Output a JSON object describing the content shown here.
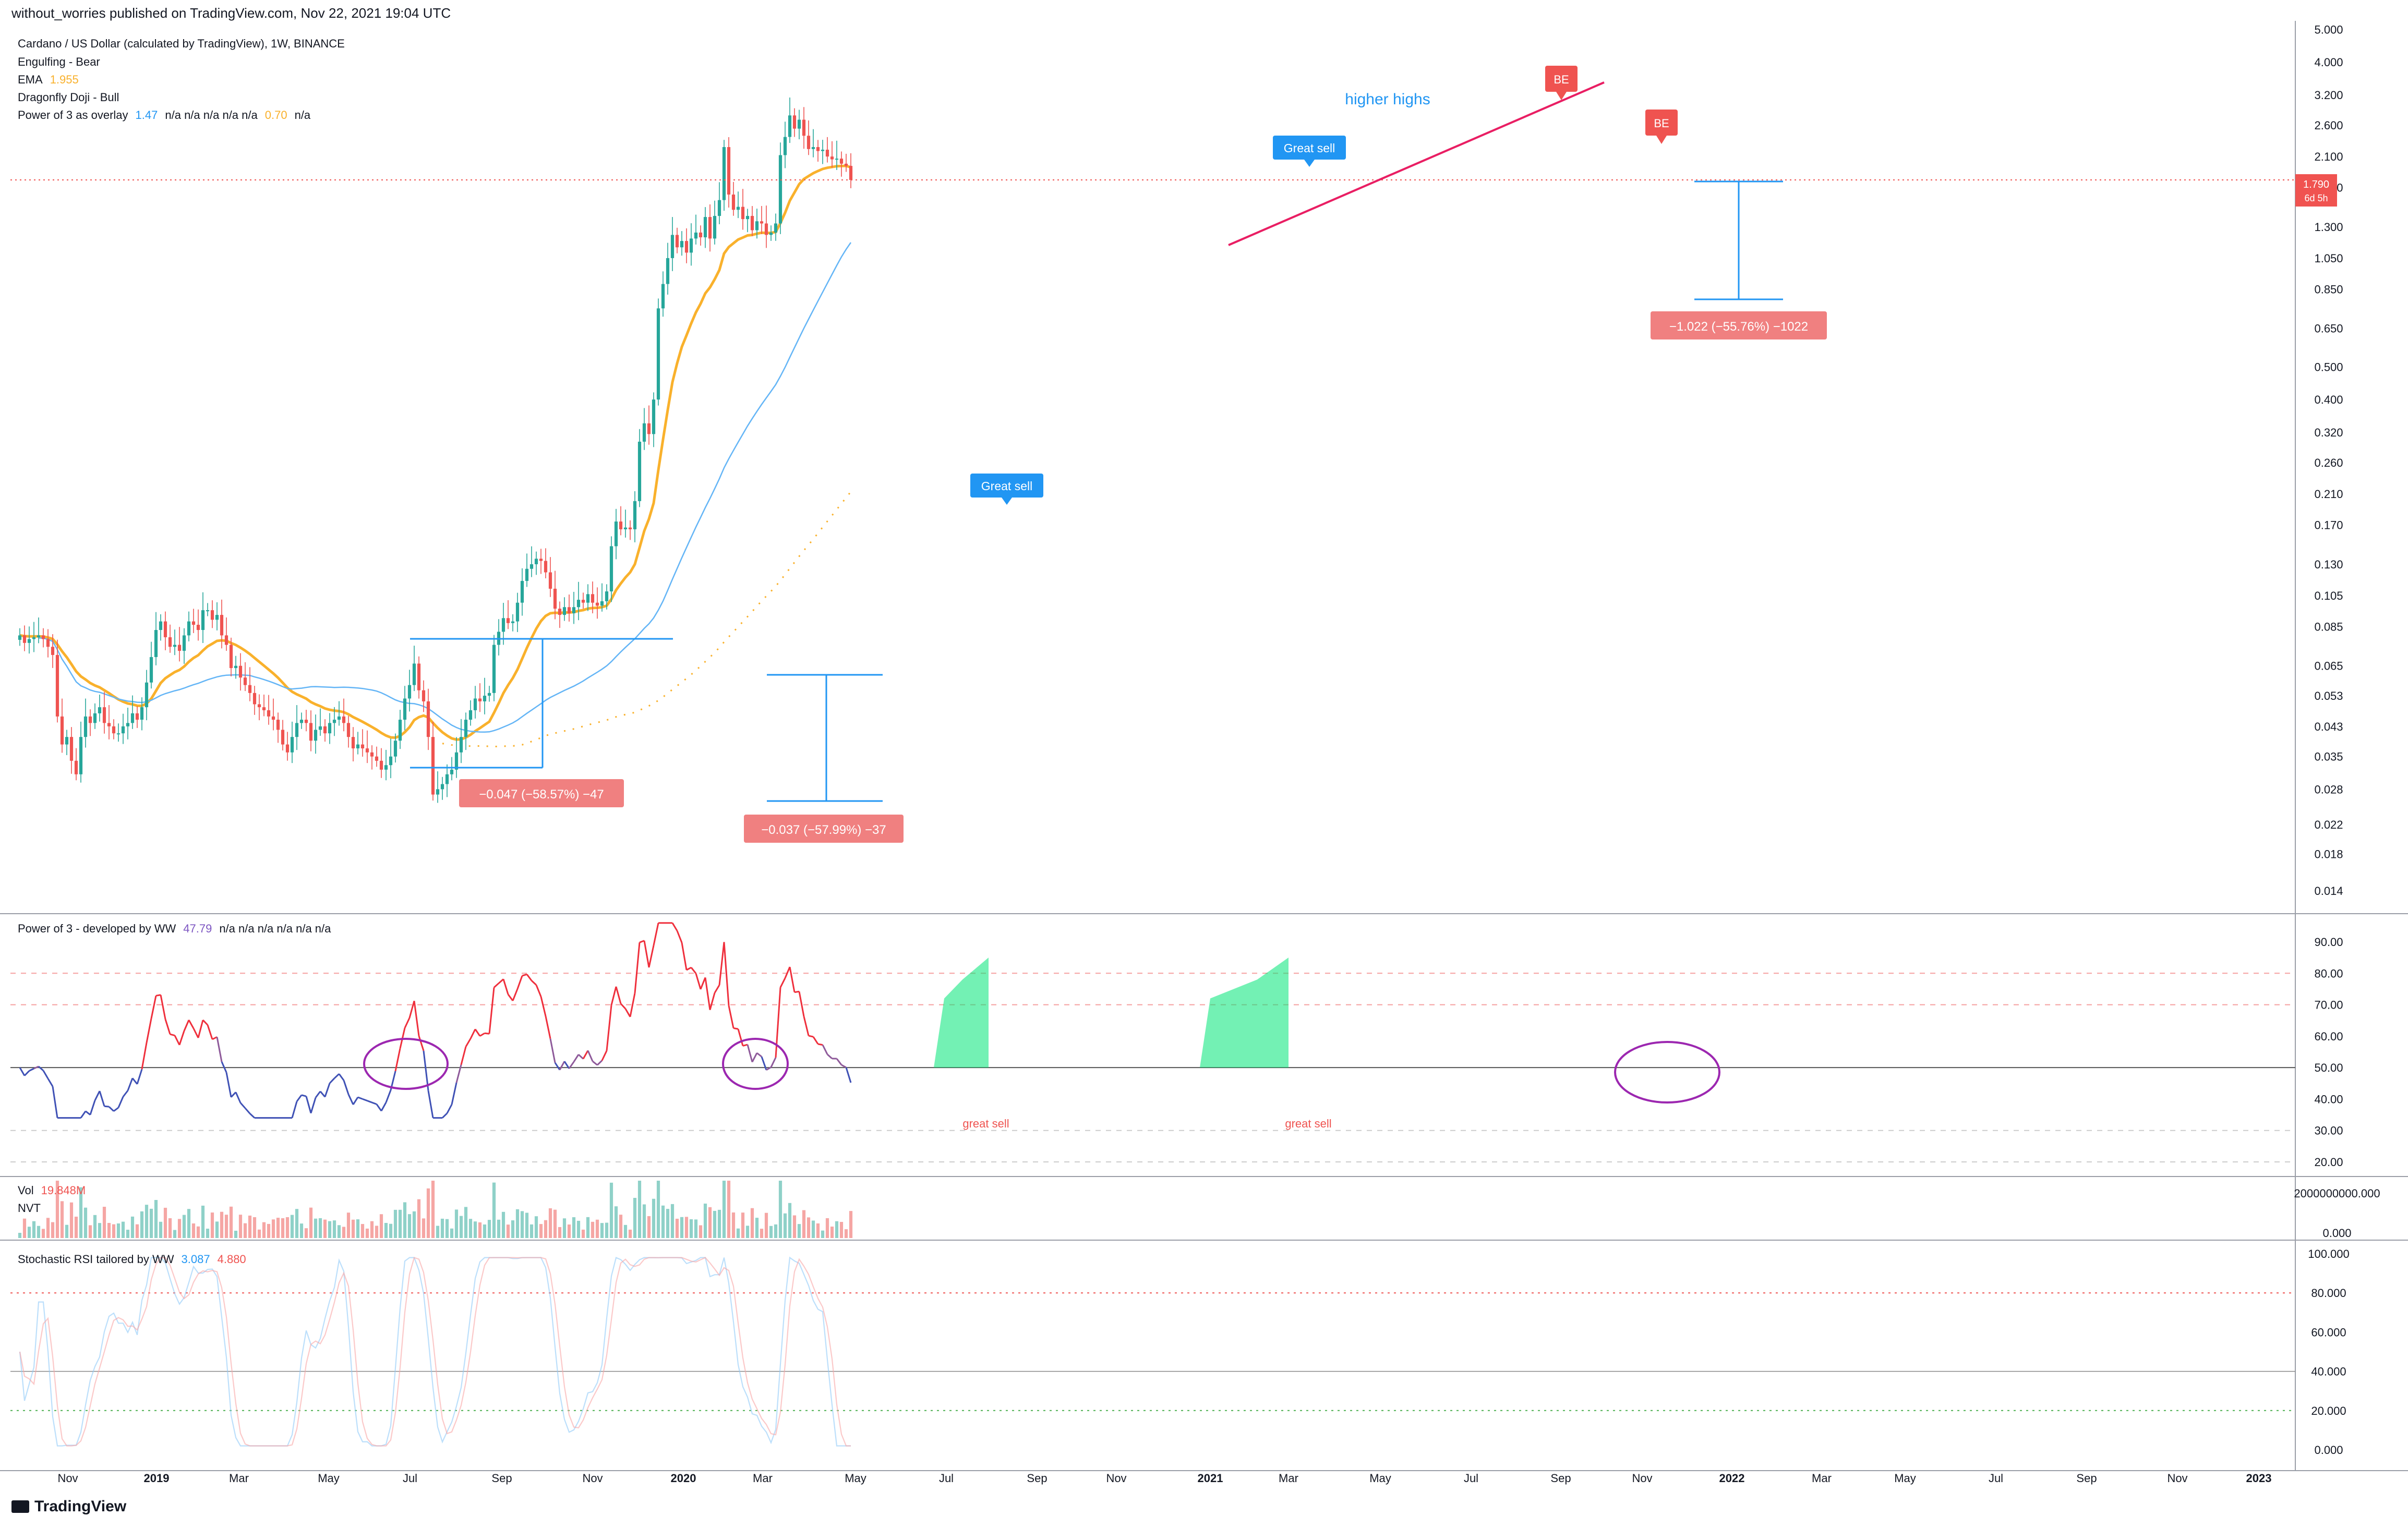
{
  "header": "without_worries published on TradingView.com, Nov 22, 2021 19:04 UTC",
  "footer": {
    "logo_text": "TradingView"
  },
  "colors": {
    "up": "#26a69a",
    "down": "#ef5350",
    "ema": "#f9b12c",
    "ma": "#64b5f6",
    "power": "#ef2f3c",
    "power_low": "#3f51b5",
    "annot": "#9c27b0",
    "label_blue": "#2196f3",
    "label_red": "#ef5350",
    "price_red": "#f05350"
  },
  "legend": {
    "line1": "Cardano / US Dollar (calculated by TradingView), 1W, BINANCE",
    "line2": "Engulfing - Bear",
    "ema_label": "EMA",
    "ema_value": "1.955",
    "line4": "Dragonfly Doji - Bull",
    "p3o_label": "Power of 3 as overlay",
    "p3o_v1": "1.47",
    "p3o_na": "n/a  n/a  n/a  n/a  n/a",
    "p3o_v2": "0.70",
    "p3o_na2": "n/a"
  },
  "annotations": {
    "higher_highs": "higher highs",
    "great_sell_1": "Great sell",
    "great_sell_2": "Great sell",
    "be1": "BE",
    "be2": "BE",
    "measure1": "−0.047 (−58.57%) −47",
    "measure2": "−0.037 (−57.99%) −37",
    "measure3": "−1.022 (−55.76%) −1022",
    "great_sell_p1": "great sell",
    "great_sell_p2": "great sell"
  },
  "price_badge": {
    "price": "1.790",
    "time": "6d 5h"
  },
  "panels": {
    "power": {
      "title": "Power of 3 - developed by WW",
      "value": "47.79",
      "na": "n/a  n/a  n/a  n/a  n/a  n/a",
      "ticks": [
        "90.00",
        "80.00",
        "70.00",
        "60.00",
        "50.00",
        "40.00",
        "30.00",
        "20.00"
      ]
    },
    "vol": {
      "title": "Vol",
      "value": "19.848M",
      "sub": "NVT",
      "ticks": [
        "2000000000.000",
        "0.000"
      ]
    },
    "stoch": {
      "title": "Stochastic RSI tailored by WW",
      "v1": "3.087",
      "v2": "4.880",
      "ticks": [
        "100.000",
        "80.000",
        "60.000",
        "40.000",
        "20.000",
        "0.000"
      ]
    }
  },
  "x_axis": [
    "Nov",
    "2019",
    "Mar",
    "May",
    "Jul",
    "Sep",
    "Nov",
    "2020",
    "Mar",
    "May",
    "Jul",
    "Sep",
    "Nov",
    "2021",
    "Mar",
    "May",
    "Jul",
    "Sep",
    "Nov",
    "2022",
    "Mar",
    "May",
    "Jul",
    "Sep",
    "Nov",
    "2023"
  ],
  "chart_data": {
    "type": "candlestick",
    "title": "Cardano / US Dollar (calculated by TradingView), 1W, BINANCE",
    "scale": "log",
    "y_ticks": [
      "5.000",
      "4.000",
      "3.200",
      "2.600",
      "2.100",
      "1.700",
      "1.300",
      "1.050",
      "0.850",
      "0.650",
      "0.500",
      "0.400",
      "0.320",
      "0.260",
      "0.210",
      "0.170",
      "0.130",
      "0.105",
      "0.085",
      "0.065",
      "0.053",
      "0.043",
      "0.035",
      "0.028",
      "0.022",
      "0.018",
      "0.014"
    ],
    "ylim": [
      0.0125,
      5.3
    ],
    "candles_close": [
      0.08,
      0.076,
      0.078,
      0.079,
      0.08,
      0.078,
      0.074,
      0.07,
      0.046,
      0.038,
      0.04,
      0.034,
      0.031,
      0.04,
      0.046,
      0.044,
      0.047,
      0.049,
      0.044,
      0.043,
      0.041,
      0.041,
      0.043,
      0.044,
      0.047,
      0.045,
      0.049,
      0.058,
      0.069,
      0.083,
      0.088,
      0.079,
      0.074,
      0.075,
      0.072,
      0.08,
      0.088,
      0.086,
      0.083,
      0.095,
      0.095,
      0.089,
      0.092,
      0.08,
      0.075,
      0.064,
      0.065,
      0.06,
      0.057,
      0.054,
      0.05,
      0.049,
      0.048,
      0.046,
      0.045,
      0.042,
      0.038,
      0.036,
      0.04,
      0.044,
      0.045,
      0.044,
      0.039,
      0.042,
      0.043,
      0.041,
      0.044,
      0.045,
      0.046,
      0.044,
      0.04,
      0.037,
      0.038,
      0.037,
      0.036,
      0.035,
      0.034,
      0.032,
      0.033,
      0.035,
      0.039,
      0.045,
      0.052,
      0.057,
      0.066,
      0.055,
      0.051,
      0.04,
      0.027,
      0.028,
      0.029,
      0.031,
      0.032,
      0.036,
      0.04,
      0.045,
      0.048,
      0.052,
      0.051,
      0.053,
      0.054,
      0.075,
      0.082,
      0.09,
      0.087,
      0.088,
      0.1,
      0.116,
      0.126,
      0.13,
      0.135,
      0.133,
      0.123,
      0.11,
      0.096,
      0.092,
      0.097,
      0.093,
      0.097,
      0.102,
      0.1,
      0.106,
      0.1,
      0.098,
      0.101,
      0.108,
      0.147,
      0.174,
      0.165,
      0.167,
      0.165,
      0.2,
      0.3,
      0.34,
      0.316,
      0.4,
      0.745,
      0.88,
      1.05,
      1.23,
      1.13,
      1.18,
      1.09,
      1.2,
      1.25,
      1.21,
      1.39,
      1.2,
      1.4,
      1.56,
      2.24,
      1.62,
      1.46,
      1.49,
      1.37,
      1.4,
      1.27,
      1.35,
      1.33,
      1.23,
      1.25,
      1.33,
      2.12,
      2.4,
      2.78,
      2.54,
      2.7,
      2.42,
      2.21,
      2.24,
      2.18,
      2.2,
      2.1,
      2.06,
      2.07,
      2.0,
      1.97,
      1.79
    ],
    "ema": {
      "label": "EMA",
      "last_value": 1.955
    },
    "measurements": [
      {
        "change": -0.047,
        "percent": -58.57,
        "ticks": -47
      },
      {
        "change": -0.037,
        "percent": -57.99,
        "ticks": -37
      },
      {
        "change": -1.022,
        "percent": -55.76,
        "ticks": -1022
      }
    ],
    "xlabel": "",
    "ylabel": ""
  }
}
